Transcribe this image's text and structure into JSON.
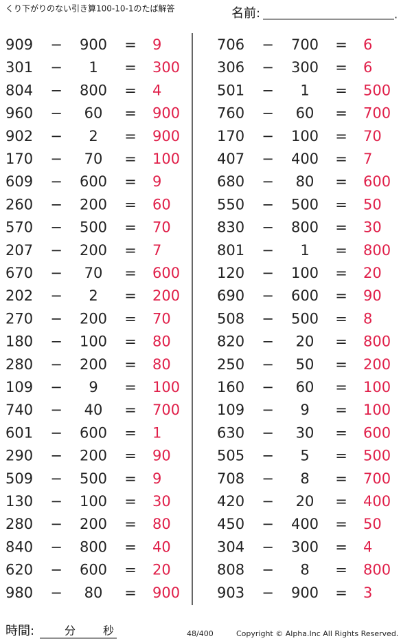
{
  "header": {
    "title": "くり下がりのない引き算100-10-1のたば解答",
    "name_label": "名前:",
    "name_end": "."
  },
  "operators": {
    "minus": "−",
    "equals": "="
  },
  "columns": [
    [
      [
        909,
        900,
        9
      ],
      [
        301,
        1,
        300
      ],
      [
        804,
        800,
        4
      ],
      [
        960,
        60,
        900
      ],
      [
        902,
        2,
        900
      ],
      [
        170,
        70,
        100
      ],
      [
        609,
        600,
        9
      ],
      [
        260,
        200,
        60
      ],
      [
        570,
        500,
        70
      ],
      [
        207,
        200,
        7
      ],
      [
        670,
        70,
        600
      ],
      [
        202,
        2,
        200
      ],
      [
        270,
        200,
        70
      ],
      [
        180,
        100,
        80
      ],
      [
        280,
        200,
        80
      ],
      [
        109,
        9,
        100
      ],
      [
        740,
        40,
        700
      ],
      [
        601,
        600,
        1
      ],
      [
        290,
        200,
        90
      ],
      [
        509,
        500,
        9
      ],
      [
        130,
        100,
        30
      ],
      [
        280,
        200,
        80
      ],
      [
        840,
        800,
        40
      ],
      [
        620,
        600,
        20
      ],
      [
        980,
        80,
        900
      ]
    ],
    [
      [
        706,
        700,
        6
      ],
      [
        306,
        300,
        6
      ],
      [
        501,
        1,
        500
      ],
      [
        760,
        60,
        700
      ],
      [
        170,
        100,
        70
      ],
      [
        407,
        400,
        7
      ],
      [
        680,
        80,
        600
      ],
      [
        550,
        500,
        50
      ],
      [
        830,
        800,
        30
      ],
      [
        801,
        1,
        800
      ],
      [
        120,
        100,
        20
      ],
      [
        690,
        600,
        90
      ],
      [
        508,
        500,
        8
      ],
      [
        820,
        20,
        800
      ],
      [
        250,
        50,
        200
      ],
      [
        160,
        60,
        100
      ],
      [
        109,
        9,
        100
      ],
      [
        630,
        30,
        600
      ],
      [
        505,
        5,
        500
      ],
      [
        708,
        8,
        700
      ],
      [
        420,
        20,
        400
      ],
      [
        450,
        400,
        50
      ],
      [
        304,
        300,
        4
      ],
      [
        808,
        8,
        800
      ],
      [
        903,
        900,
        3
      ]
    ]
  ],
  "footer": {
    "time_label": "時間:",
    "minutes": "分",
    "seconds": "秒",
    "page": "48/400",
    "copyright": "Copyright ©  Alpha.Inc All Rights Reserved."
  }
}
